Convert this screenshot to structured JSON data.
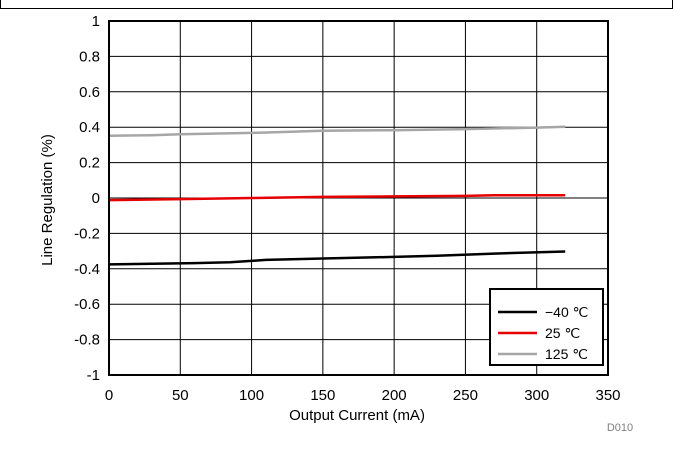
{
  "chart_data": {
    "type": "line",
    "title": "",
    "xlabel": "Output Current (mA)",
    "ylabel": "Line Regulation (%)",
    "xlim": [
      0,
      350
    ],
    "ylim": [
      -1,
      1
    ],
    "x_ticks": [
      "0",
      "50",
      "100",
      "150",
      "200",
      "250",
      "300",
      "350"
    ],
    "y_ticks": [
      "1",
      "0.8",
      "0.6",
      "0.4",
      "0.2",
      "0",
      "-0.2",
      "-0.4",
      "-0.6",
      "-0.8",
      "-1"
    ],
    "grid": true,
    "legend_position": "bottom-right",
    "series": [
      {
        "name": "−40 ℃",
        "color": "#000000",
        "x": [
          0,
          30,
          60,
          85,
          110,
          150,
          200,
          230,
          270,
          320
        ],
        "y": [
          -0.375,
          -0.372,
          -0.368,
          -0.363,
          -0.35,
          -0.342,
          -0.333,
          -0.326,
          -0.314,
          -0.302
        ]
      },
      {
        "name": "25 ℃",
        "color": "#e60000",
        "x": [
          0,
          50,
          100,
          150,
          200,
          250,
          270,
          320
        ],
        "y": [
          -0.012,
          -0.006,
          0.0,
          0.006,
          0.009,
          0.012,
          0.015,
          0.015
        ]
      },
      {
        "name": "125 ℃",
        "color": "#a6a6a6",
        "x": [
          0,
          30,
          50,
          100,
          150,
          200,
          250,
          300,
          320
        ],
        "y": [
          0.352,
          0.355,
          0.36,
          0.368,
          0.38,
          0.383,
          0.389,
          0.398,
          0.402
        ]
      }
    ],
    "figure_code": "D010"
  }
}
